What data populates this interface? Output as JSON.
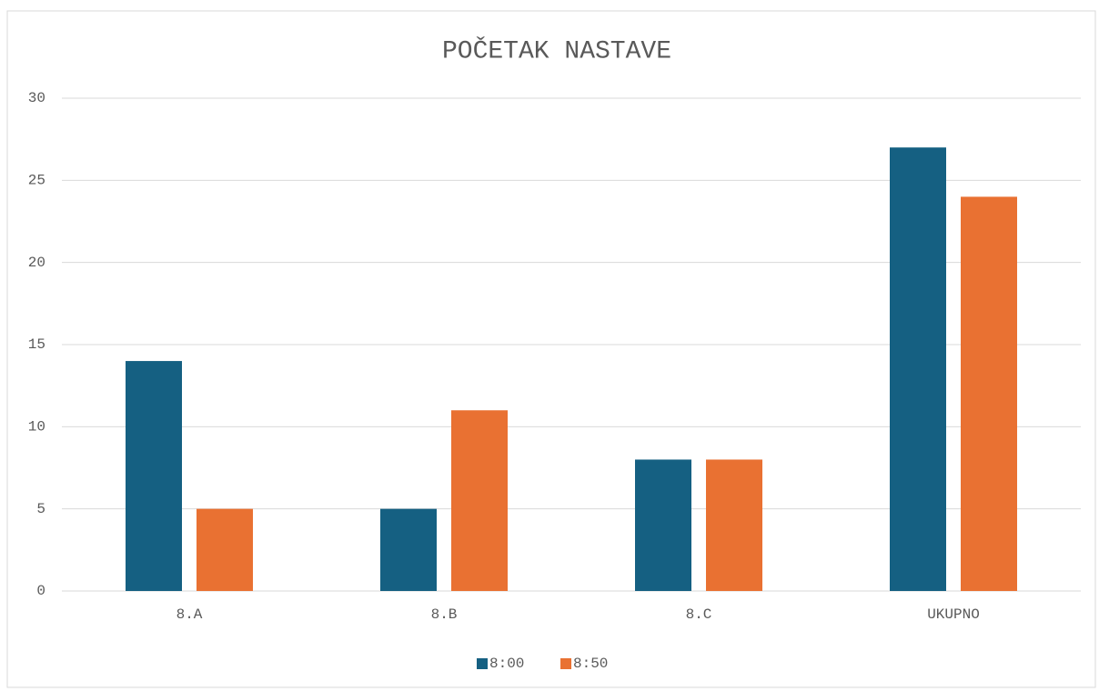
{
  "chart_data": {
    "type": "bar",
    "title": "POČETAK NASTAVE",
    "categories": [
      "8.A",
      "8.B",
      "8.C",
      "UKUPNO"
    ],
    "series": [
      {
        "name": "8:00",
        "color": "#156082",
        "values": [
          14,
          5,
          8,
          27
        ]
      },
      {
        "name": "8:50",
        "color": "#e97132",
        "values": [
          5,
          11,
          8,
          24
        ]
      }
    ],
    "ylim": [
      0,
      30
    ],
    "yticks": [
      0,
      5,
      10,
      15,
      20,
      25,
      30
    ],
    "grid": true,
    "legend": "bottom"
  }
}
